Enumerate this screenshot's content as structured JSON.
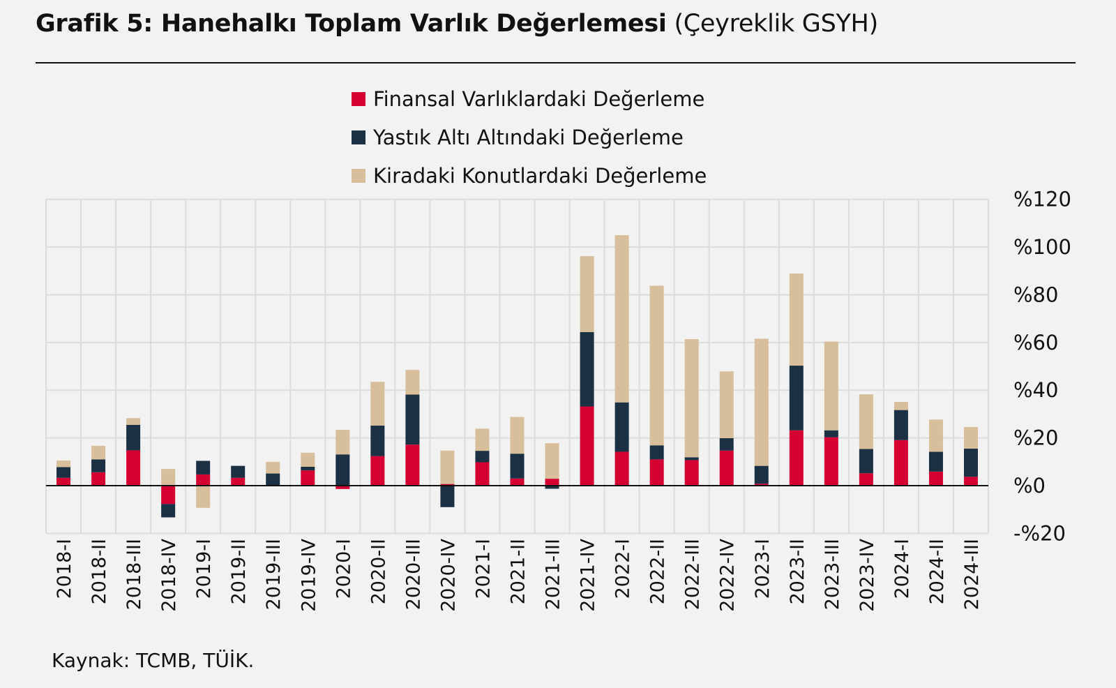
{
  "chart_data": {
    "type": "bar",
    "stacked": true,
    "title": "Grafik 5: Hanehalkı Toplam Varlık Değerlemesi",
    "subtitle": "(Çeyreklik GSYH)",
    "source": "Kaynak: TCMB, TÜİK.",
    "ylim": [
      -20,
      120
    ],
    "yticks": [
      -20,
      0,
      20,
      40,
      60,
      80,
      100,
      120
    ],
    "ytick_labels": [
      "-%20",
      "%0",
      "%20",
      "%40",
      "%60",
      "%80",
      "%100",
      "%120"
    ],
    "y_axis_side": "right",
    "grid": true,
    "legend_position": "top-center",
    "categories": [
      "2018-I",
      "2018-II",
      "2018-III",
      "2018-IV",
      "2019-I",
      "2019-II",
      "2019-III",
      "2019-IV",
      "2020-I",
      "2020-II",
      "2020-III",
      "2020-IV",
      "2021-I",
      "2021-II",
      "2021-III",
      "2021-IV",
      "2022-I",
      "2022-II",
      "2022-III",
      "2022-IV",
      "2023-I",
      "2023-II",
      "2023-III",
      "2023-IV",
      "2024-I",
      "2024-II",
      "2024-III"
    ],
    "series": [
      {
        "name": "Finansal Varlıklardaki Değerleme",
        "color": "#d50032",
        "values": [
          3.3,
          5.6,
          14.8,
          -7.7,
          4.7,
          3.3,
          0,
          6.4,
          -1.4,
          12.4,
          17.2,
          0.7,
          9.8,
          3.0,
          2.9,
          33.2,
          14.2,
          11.0,
          10.7,
          14.7,
          0.8,
          23.2,
          20.3,
          5.2,
          19.1,
          5.9,
          3.7
        ]
      },
      {
        "name": "Yastık Altı Altındaki Değerleme",
        "color": "#1c3044",
        "values": [
          4.5,
          5.4,
          10.7,
          -5.6,
          5.7,
          5.0,
          5.1,
          1.5,
          13.1,
          12.8,
          21.0,
          -9.0,
          4.8,
          10.4,
          -1.3,
          31.2,
          20.7,
          5.9,
          1.2,
          5.2,
          7.5,
          27.1,
          2.9,
          10.2,
          12.6,
          8.3,
          11.8
        ]
      },
      {
        "name": "Kiradaki Konutlardaki Değerleme",
        "color": "#d6bf9a",
        "values": [
          2.7,
          5.7,
          2.8,
          7.0,
          -9.3,
          0,
          4.9,
          5.9,
          10.3,
          18.3,
          10.3,
          14.0,
          9.3,
          15.4,
          14.9,
          31.8,
          70.1,
          66.9,
          49.5,
          28.0,
          53.3,
          38.6,
          37.2,
          22.9,
          3.4,
          13.5,
          9.1
        ]
      }
    ]
  }
}
